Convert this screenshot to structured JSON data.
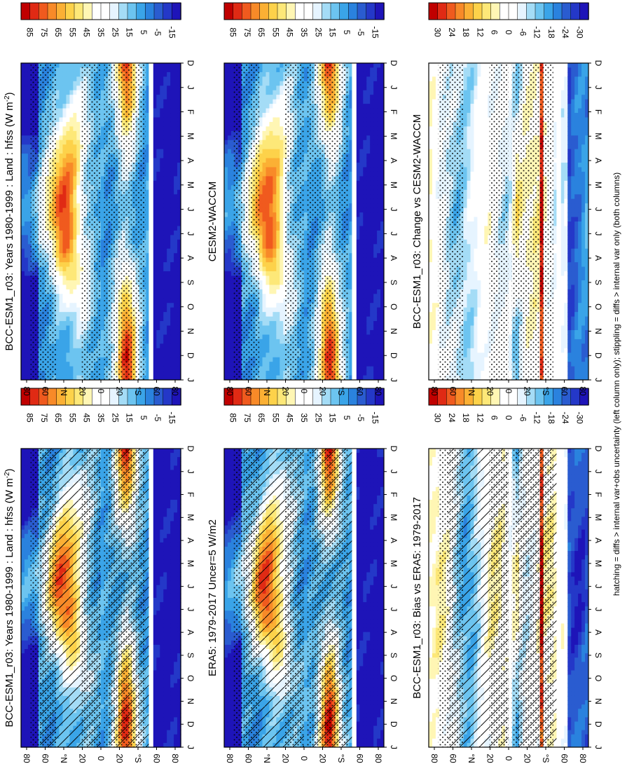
{
  "chart_data": {
    "type": "heatmap",
    "orientation": "rotated 90 degrees clockwise (month axis runs top-to-bottom, latitude runs right-to-left)",
    "footnote": "hatching = diffs > internal var+obs uncertainty (left column only); stippling = diffs > internal var only (both columns)",
    "month_ticks": [
      "D",
      "J",
      "F",
      "M",
      "A",
      "M",
      "J",
      "J",
      "A",
      "S",
      "O",
      "N",
      "D",
      "J"
    ],
    "lat_ticks": [
      "80",
      "60",
      "°N",
      "20",
      "0",
      "20",
      "°S",
      "60",
      "80"
    ],
    "panels": [
      {
        "id": "p1",
        "title": "BCC-ESM1_r03: Years 1980-1999 : Land : hfss (W m",
        "title_sup": "-2",
        "title_end": ")",
        "kind": "absolute",
        "hatching": true,
        "stippling": true,
        "colorbar_labels": [
          "85",
          "75",
          "65",
          "55",
          "45",
          "35",
          "25",
          "15",
          "5",
          "-5",
          "-15"
        ]
      },
      {
        "id": "p2",
        "title": "BCC-ESM1_r03: Years 1980-1999 : Land : hfss (W m",
        "title_sup": "-2",
        "title_end": ")",
        "kind": "absolute",
        "hatching": false,
        "stippling": true,
        "colorbar_labels": [
          "85",
          "75",
          "65",
          "55",
          "45",
          "35",
          "25",
          "15",
          "5",
          "-5",
          "-15"
        ]
      },
      {
        "id": "p3",
        "title": "ERA5: 1979-2017 Uncer=5 W/m2",
        "title_sup": "",
        "title_end": "",
        "kind": "absolute",
        "hatching": true,
        "stippling": true,
        "colorbar_labels": [
          "85",
          "75",
          "65",
          "55",
          "45",
          "35",
          "25",
          "15",
          "5",
          "-5",
          "-15"
        ]
      },
      {
        "id": "p4",
        "title": "CESM2-WACCM",
        "title_sup": "",
        "title_end": "",
        "kind": "absolute",
        "hatching": false,
        "stippling": true,
        "colorbar_labels": [
          "85",
          "75",
          "65",
          "55",
          "45",
          "35",
          "25",
          "15",
          "5",
          "-5",
          "-15"
        ]
      },
      {
        "id": "p5",
        "title": "BCC-ESM1_r03: Bias vs ERA5: 1979-2017",
        "title_sup": "",
        "title_end": "",
        "kind": "difference",
        "hatching": true,
        "stippling": true,
        "colorbar_labels": [
          "30",
          "24",
          "18",
          "12",
          "6",
          "0",
          "-6",
          "-12",
          "-18",
          "-24",
          "-30"
        ]
      },
      {
        "id": "p6",
        "title": "BCC-ESM1_r03: Change vs CESM2-WACCM",
        "title_sup": "",
        "title_end": "",
        "kind": "difference",
        "hatching": false,
        "stippling": true,
        "colorbar_labels": [
          "30",
          "24",
          "18",
          "12",
          "6",
          "0",
          "-6",
          "-12",
          "-18",
          "-24",
          "-30"
        ]
      }
    ]
  },
  "colors": {
    "scale": [
      "#c00000",
      "#e02a14",
      "#f05a1e",
      "#f88a28",
      "#fbb034",
      "#fdd24a",
      "#fde878",
      "#fff6b4",
      "#ffffff",
      "#ffffff",
      "#e6f4ff",
      "#a4dcf6",
      "#6cc4f0",
      "#3aa4e8",
      "#2a82de",
      "#2a5cd0",
      "#2438c8",
      "#1e14b8"
    ],
    "no_data": "#ffffff",
    "stroke": "#000000"
  }
}
